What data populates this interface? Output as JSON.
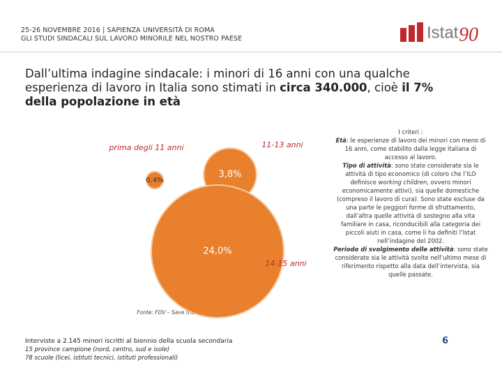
{
  "header": {
    "line1": "25-26 NOVEMBRE 2016 | SAPIENZA UNIVERSITÀ DI ROMA",
    "line2": "GLI STUDI SINDACALI SUL LAVORO MINORILE NEL NOSTRO PAESE",
    "logo_text": "Istat",
    "logo_number": "90"
  },
  "title": {
    "part1": "Dall’ultima indagine sindacale: i minori di 16 anni con una qualche esperienza di lavoro in Italia sono stimati in ",
    "bold1": "circa 340.000",
    "part2": ", cioè ",
    "bold2": "il 7% della popolazione in età"
  },
  "chart_data": {
    "type": "bubble",
    "categories": [
      "prima degli 11 anni",
      "11-13 anni",
      "14-15 anni"
    ],
    "values": [
      0.4,
      3.8,
      24.0
    ],
    "value_labels": [
      "0,4%",
      "3,8%",
      "24,0%"
    ],
    "color": "#e8802e",
    "source": "Fonte: FDV – Save the Children Italia"
  },
  "notes": {
    "line1": "Interviste a 2.145 minori iscritti al biennio della scuola secondaria",
    "line2": "15 province campione (nord, centro, sud e isole)",
    "line3": "78 scuole (licei, istituti tecnici, istituti professionali)"
  },
  "sidebar": {
    "parts": [
      "I criteri :",
      "Età",
      ": le esperienze di lavoro dei minori con meno di 16 anni, come stabilito dalla legge italiana di accesso al lavoro.",
      "Tipo di attività",
      ": sono state considerate sia le attività di tipo economico (di coloro che l’ILO definisce ",
      "working children",
      ", ovvero minori economicamente attivi), sia quelle domestiche (compreso il lavoro di cura). Sono state escluse da una parte le peggiori forme di sfruttamento, dall’altra quelle attività di sostegno alla vita familiare in casa, riconducibili alla categoria dei piccoli aiuti in casa, come li ha definiti l’Istat nell’indagine del 2002.",
      "Periodo di svolgimento delle attività",
      ": sono state considerate sia le attività svolte nell’ultimo mese di riferimento rispetto alla data dell’intervista, sia quelle passate."
    ]
  },
  "page_number": "6"
}
